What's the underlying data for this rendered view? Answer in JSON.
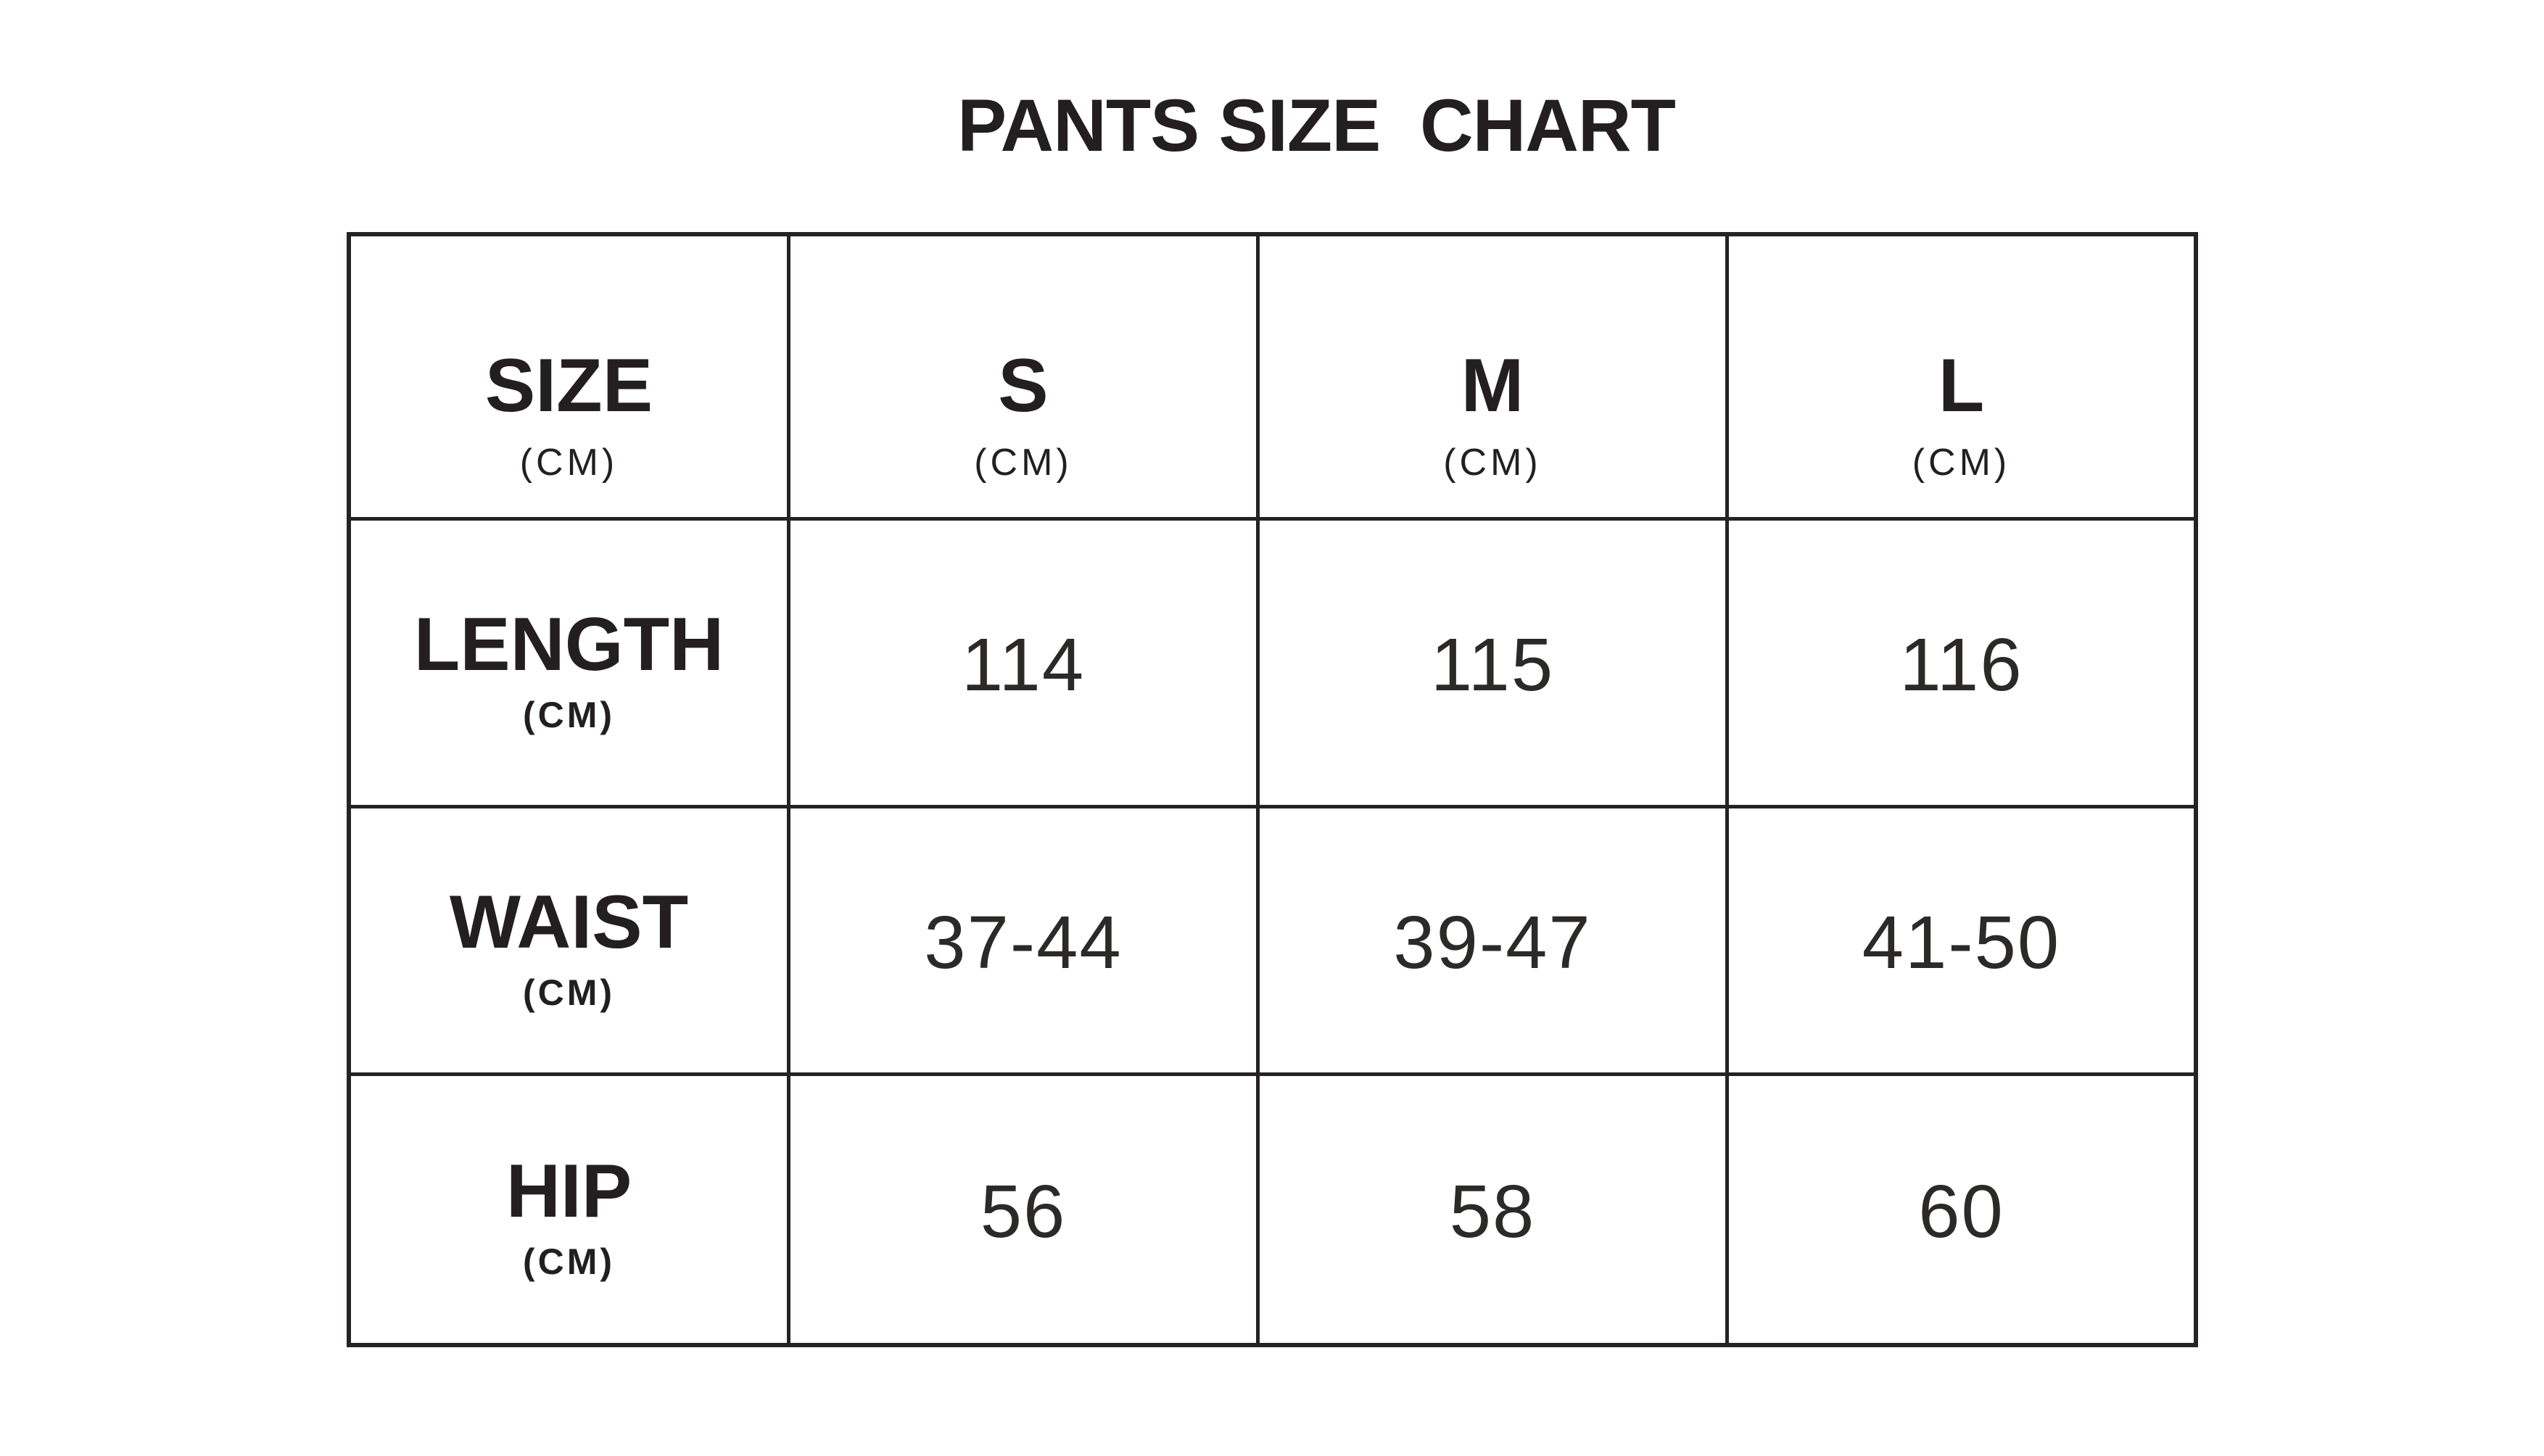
{
  "title": "PANTS SIZE  CHART",
  "colors": {
    "text": "#231f20",
    "border": "#262223",
    "background": "#ffffff"
  },
  "table": {
    "corner": {
      "label": "SIZE",
      "unit": "(CM)"
    },
    "columns": [
      {
        "label": "S",
        "unit": "(CM)"
      },
      {
        "label": "M",
        "unit": "(CM)"
      },
      {
        "label": "L",
        "unit": "(CM)"
      }
    ],
    "rows": [
      {
        "label": "LENGTH",
        "unit": "(CM)",
        "values": [
          "114",
          "115",
          "116"
        ]
      },
      {
        "label": "WAIST",
        "unit": "(CM)",
        "values": [
          "37-44",
          "39-47",
          "41-50"
        ]
      },
      {
        "label": "HIP",
        "unit": "(CM)",
        "values": [
          "56",
          "58",
          "60"
        ]
      }
    ]
  },
  "chart_data": {
    "type": "table",
    "title": "PANTS SIZE  CHART",
    "columns": [
      "SIZE (CM)",
      "S (CM)",
      "M (CM)",
      "L (CM)"
    ],
    "rows": [
      {
        "label": "LENGTH (CM)",
        "values": [
          114,
          115,
          116
        ]
      },
      {
        "label": "WAIST (CM)",
        "values": [
          "37-44",
          "39-47",
          "41-50"
        ]
      },
      {
        "label": "HIP (CM)",
        "values": [
          56,
          58,
          60
        ]
      }
    ],
    "layout": {
      "grid": true,
      "header_row": true,
      "label_column": true
    }
  }
}
